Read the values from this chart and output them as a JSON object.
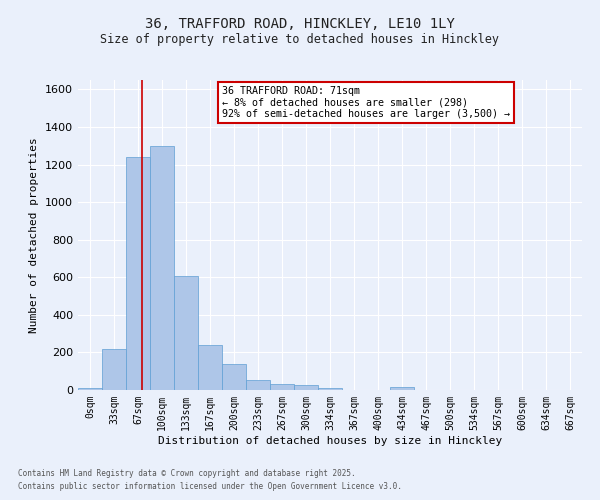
{
  "title_line1": "36, TRAFFORD ROAD, HINCKLEY, LE10 1LY",
  "title_line2": "Size of property relative to detached houses in Hinckley",
  "xlabel": "Distribution of detached houses by size in Hinckley",
  "ylabel": "Number of detached properties",
  "bar_labels": [
    "0sqm",
    "33sqm",
    "67sqm",
    "100sqm",
    "133sqm",
    "167sqm",
    "200sqm",
    "233sqm",
    "267sqm",
    "300sqm",
    "334sqm",
    "367sqm",
    "400sqm",
    "434sqm",
    "467sqm",
    "500sqm",
    "534sqm",
    "567sqm",
    "600sqm",
    "634sqm",
    "667sqm"
  ],
  "bar_values": [
    10,
    220,
    1240,
    1300,
    605,
    240,
    140,
    55,
    30,
    25,
    10,
    0,
    0,
    15,
    0,
    0,
    0,
    0,
    0,
    0,
    0
  ],
  "bar_color": "#aec6e8",
  "bar_edge_color": "#5f9fd4",
  "background_color": "#eaf0fb",
  "grid_color": "#ffffff",
  "vline_x": 2.15,
  "vline_color": "#cc0000",
  "annotation_text": "36 TRAFFORD ROAD: 71sqm\n← 8% of detached houses are smaller (298)\n92% of semi-detached houses are larger (3,500) →",
  "annotation_box_color": "#ffffff",
  "annotation_box_edgecolor": "#cc0000",
  "ylim": [
    0,
    1650
  ],
  "yticks": [
    0,
    200,
    400,
    600,
    800,
    1000,
    1200,
    1400,
    1600
  ],
  "footer_line1": "Contains HM Land Registry data © Crown copyright and database right 2025.",
  "footer_line2": "Contains public sector information licensed under the Open Government Licence v3.0."
}
